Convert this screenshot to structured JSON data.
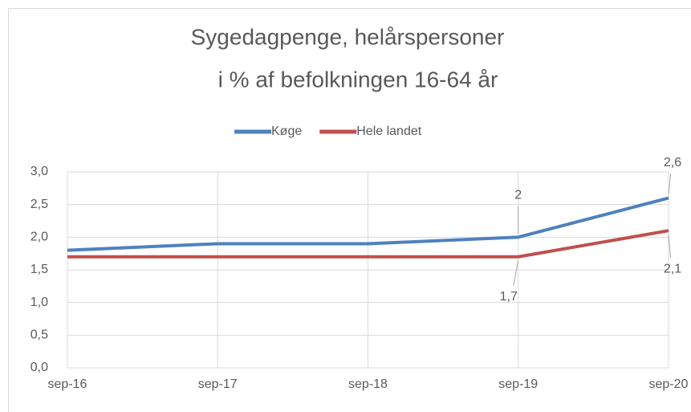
{
  "chart_data": {
    "type": "line",
    "title": [
      "Sygedagpenge, helårspersoner",
      "i % af befolkningen 16-64 år"
    ],
    "categories": [
      "sep-16",
      "sep-17",
      "sep-18",
      "sep-19",
      "sep-20"
    ],
    "series": [
      {
        "name": "Køge",
        "color": "#4f81bd",
        "values": [
          1.8,
          1.9,
          1.9,
          2.0,
          2.6
        ],
        "value_labels": [
          null,
          null,
          null,
          "2",
          "2,6"
        ]
      },
      {
        "name": "Hele landet",
        "color": "#c0504d",
        "values": [
          1.7,
          1.7,
          1.7,
          1.7,
          2.1
        ],
        "value_labels": [
          null,
          null,
          null,
          "1,7",
          "2,1"
        ]
      }
    ],
    "ylim": [
      0,
      3
    ],
    "yticks": [
      {
        "value": 0,
        "label": "0,0"
      },
      {
        "value": 0.5,
        "label": "0,5"
      },
      {
        "value": 1,
        "label": "1,0"
      },
      {
        "value": 1.5,
        "label": "1,5"
      },
      {
        "value": 2,
        "label": "2,0"
      },
      {
        "value": 2.5,
        "label": "2,5"
      },
      {
        "value": 3,
        "label": "3,0"
      }
    ],
    "grid": true,
    "legend": "top"
  }
}
